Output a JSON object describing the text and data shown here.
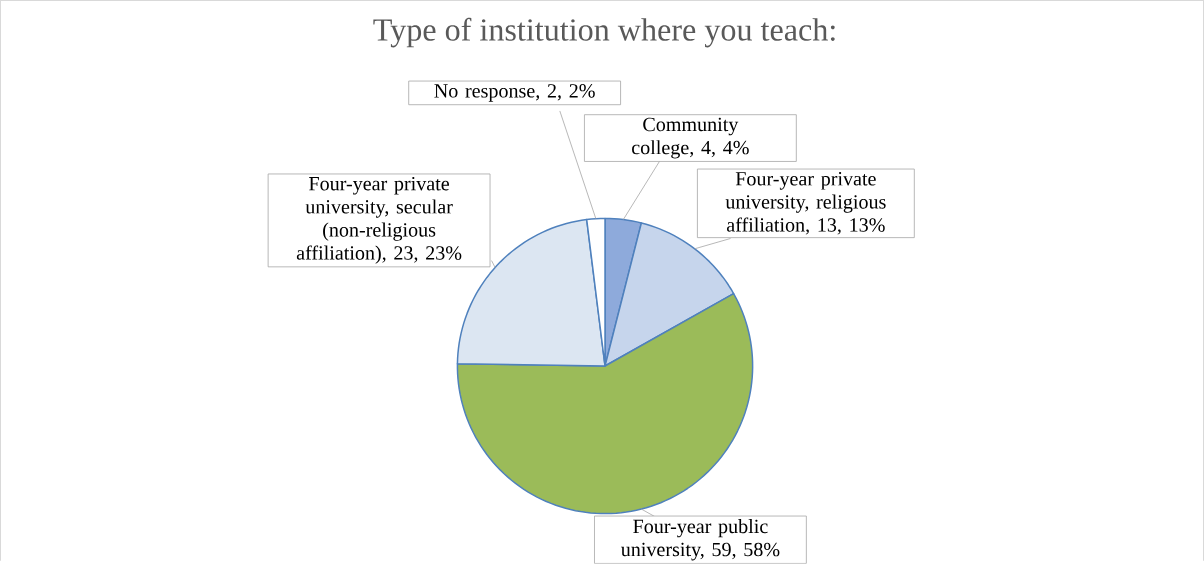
{
  "chart_data": {
    "type": "pie",
    "title": "Type of institution where you teach:",
    "categories": [
      "Community college, 4, 4%",
      "Four-year private university, religious affiliation, 13, 13%",
      "Four-year public university, 59, 58%",
      "Four-year private university, secular (non-religious affiliation), 23, 23%",
      "No response, 2, 2%"
    ],
    "values": [
      4,
      13,
      59,
      23,
      2
    ],
    "colors": [
      "#8eaadb",
      "#c6d5ec",
      "#9bbb59",
      "#dce6f2",
      "#ffffff"
    ]
  }
}
